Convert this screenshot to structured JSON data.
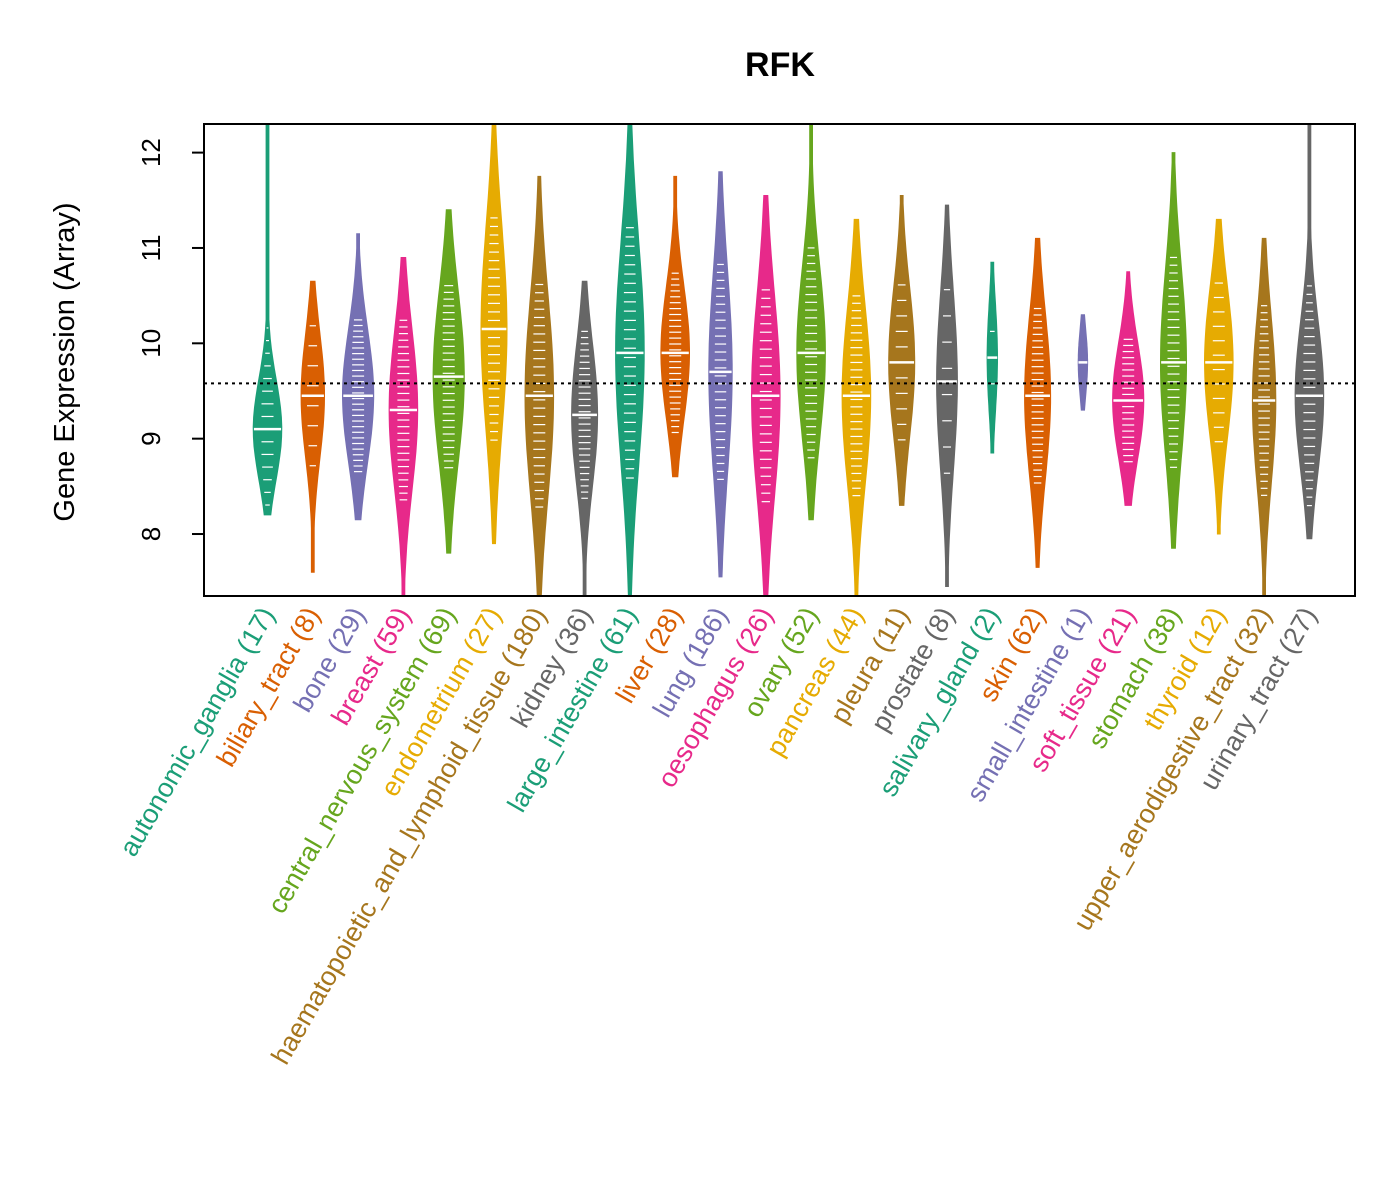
{
  "chart_data": {
    "type": "violin",
    "title": "RFK",
    "xlabel": "",
    "ylabel": "Gene Expression (Array)",
    "ylim": [
      7.35,
      12.3
    ],
    "yticks": [
      8,
      9,
      10,
      11,
      12
    ],
    "reference_line": 9.58,
    "categories": [
      {
        "name": "autonomic_ganglia",
        "n": 17,
        "label": "autonomic_ganglia (17)",
        "color": "#1b9e77",
        "median": 9.1,
        "min": 8.2,
        "max": 12.3,
        "width": 0.55
      },
      {
        "name": "biliary_tract",
        "n": 8,
        "label": "biliary_tract (8)",
        "color": "#d95f02",
        "median": 9.45,
        "min": 7.6,
        "max": 10.65,
        "width": 0.45
      },
      {
        "name": "bone",
        "n": 29,
        "label": "bone (29)",
        "color": "#7570b3",
        "median": 9.45,
        "min": 8.15,
        "max": 11.15,
        "width": 0.6
      },
      {
        "name": "breast",
        "n": 59,
        "label": "breast (59)",
        "color": "#e7298a",
        "median": 9.3,
        "min": 7.35,
        "max": 10.9,
        "width": 0.55
      },
      {
        "name": "central_nervous_system",
        "n": 69,
        "label": "central_nervous_system (69)",
        "color": "#66a61e",
        "median": 9.65,
        "min": 7.8,
        "max": 11.4,
        "width": 0.6
      },
      {
        "name": "endometrium",
        "n": 27,
        "label": "endometrium (27)",
        "color": "#e6ab02",
        "median": 10.15,
        "min": 7.9,
        "max": 12.3,
        "width": 0.5
      },
      {
        "name": "haematopoietic_and_lymphoid_tissue",
        "n": 180,
        "label": "haematopoietic_and_lymphoid_tissue (180)",
        "color": "#a6761d",
        "median": 9.45,
        "min": 7.35,
        "max": 11.75,
        "width": 0.55
      },
      {
        "name": "kidney",
        "n": 36,
        "label": "kidney (36)",
        "color": "#666666",
        "median": 9.25,
        "min": 7.35,
        "max": 10.65,
        "width": 0.5
      },
      {
        "name": "large_intestine",
        "n": 61,
        "label": "large_intestine (61)",
        "color": "#1b9e77",
        "median": 9.9,
        "min": 7.35,
        "max": 12.3,
        "width": 0.55
      },
      {
        "name": "liver",
        "n": 28,
        "label": "liver (28)",
        "color": "#d95f02",
        "median": 9.9,
        "min": 8.6,
        "max": 11.75,
        "width": 0.55
      },
      {
        "name": "lung",
        "n": 186,
        "label": "lung (186)",
        "color": "#7570b3",
        "median": 9.7,
        "min": 7.55,
        "max": 11.8,
        "width": 0.45
      },
      {
        "name": "oesophagus",
        "n": 26,
        "label": "oesophagus (26)",
        "color": "#e7298a",
        "median": 9.45,
        "min": 7.35,
        "max": 11.55,
        "width": 0.55
      },
      {
        "name": "ovary",
        "n": 52,
        "label": "ovary (52)",
        "color": "#66a61e",
        "median": 9.9,
        "min": 8.15,
        "max": 12.3,
        "width": 0.55
      },
      {
        "name": "pancreas",
        "n": 44,
        "label": "pancreas (44)",
        "color": "#e6ab02",
        "median": 9.45,
        "min": 7.35,
        "max": 11.3,
        "width": 0.55
      },
      {
        "name": "pleura",
        "n": 11,
        "label": "pleura (11)",
        "color": "#a6761d",
        "median": 9.8,
        "min": 8.3,
        "max": 11.55,
        "width": 0.5
      },
      {
        "name": "prostate",
        "n": 8,
        "label": "prostate (8)",
        "color": "#666666",
        "median": 9.6,
        "min": 7.45,
        "max": 11.45,
        "width": 0.4
      },
      {
        "name": "salivary_gland",
        "n": 2,
        "label": "salivary_gland (2)",
        "color": "#1b9e77",
        "median": 9.85,
        "min": 8.85,
        "max": 10.85,
        "width": 0.2
      },
      {
        "name": "skin",
        "n": 62,
        "label": "skin (62)",
        "color": "#d95f02",
        "median": 9.45,
        "min": 7.65,
        "max": 11.1,
        "width": 0.5
      },
      {
        "name": "small_intestine",
        "n": 1,
        "label": "small_intestine (1)",
        "color": "#7570b3",
        "median": 9.8,
        "min": 9.3,
        "max": 10.3,
        "width": 0.18
      },
      {
        "name": "soft_tissue",
        "n": 21,
        "label": "soft_tissue (21)",
        "color": "#e7298a",
        "median": 9.4,
        "min": 8.3,
        "max": 10.75,
        "width": 0.6
      },
      {
        "name": "stomach",
        "n": 38,
        "label": "stomach (38)",
        "color": "#66a61e",
        "median": 9.8,
        "min": 7.85,
        "max": 12.0,
        "width": 0.5
      },
      {
        "name": "thyroid",
        "n": 12,
        "label": "thyroid (12)",
        "color": "#e6ab02",
        "median": 9.8,
        "min": 8.0,
        "max": 11.3,
        "width": 0.55
      },
      {
        "name": "upper_aerodigestive_tract",
        "n": 32,
        "label": "upper_aerodigestive_tract (32)",
        "color": "#a6761d",
        "median": 9.4,
        "min": 7.35,
        "max": 11.1,
        "width": 0.45
      },
      {
        "name": "urinary_tract",
        "n": 27,
        "label": "urinary_tract (27)",
        "color": "#666666",
        "median": 9.45,
        "min": 7.95,
        "max": 12.3,
        "width": 0.55
      }
    ]
  }
}
